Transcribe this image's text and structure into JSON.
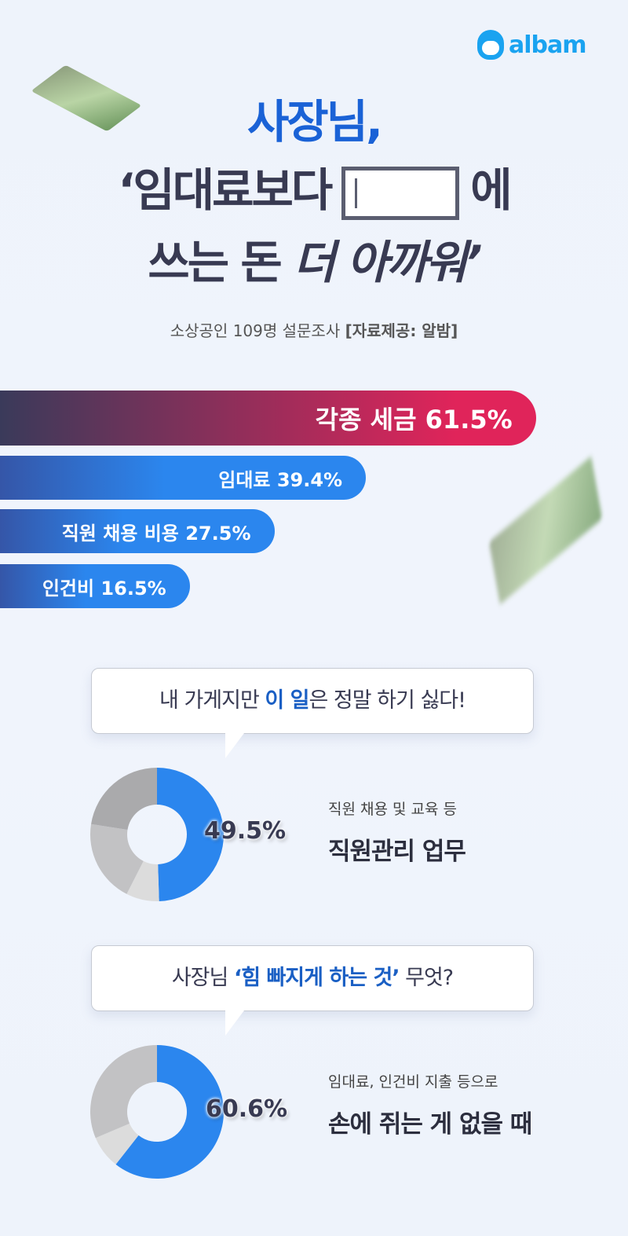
{
  "brand": {
    "name": "albam",
    "color": "#1aa3f0"
  },
  "header": {
    "title_line1": "사장님,",
    "title_line2_a": "‘임대료보다",
    "title_line2_b": "에",
    "title_line3_a": "쓰는 돈",
    "title_line3_b": "더 아까워’",
    "subtitle": "소상공인 109명 설문조사",
    "source": "[자료제공: 알밤]"
  },
  "chart_data": [
    {
      "type": "bar",
      "orientation": "horizontal",
      "categories": [
        "각종 세금",
        "임대료",
        "직원 채용 비용",
        "인건비"
      ],
      "values": [
        61.5,
        39.4,
        27.5,
        16.5
      ],
      "unit": "%",
      "labels": [
        "각종 세금 61.5%",
        "임대료 39.4%",
        "직원 채용 비용 27.5%",
        "인건비 16.5%"
      ],
      "colors": {
        "highlight": "#e0245a",
        "default": "#2b86ee",
        "start": "#3a3a5a"
      }
    },
    {
      "type": "pie",
      "variant": "donut",
      "question_a": "내 가게지만 ",
      "question_highlight": "이 일",
      "question_b": "은 정말 하기 싫다!",
      "highlight_label": "49.5%",
      "highlight_value": 49.5,
      "slices": [
        49.5,
        8,
        20,
        22.5
      ],
      "colors": [
        "#2b86ee",
        "#dcdcdc",
        "#c2c2c4",
        "#aaaaac"
      ],
      "answer_small": "직원 채용 및 교육 등",
      "answer_big": "직원관리 업무"
    },
    {
      "type": "pie",
      "variant": "donut",
      "question_a": "사장님 ",
      "question_highlight": "‘힘 빠지게 하는 것’",
      "question_b": " 무엇?",
      "highlight_label": "60.6%",
      "highlight_value": 60.6,
      "slices": [
        60.6,
        8,
        31.4
      ],
      "colors": [
        "#2b86ee",
        "#dcdcdc",
        "#c2c2c4"
      ],
      "answer_small": "임대료, 인건비 지출 등으로",
      "answer_big": "손에 쥐는 게 없을 때"
    }
  ]
}
